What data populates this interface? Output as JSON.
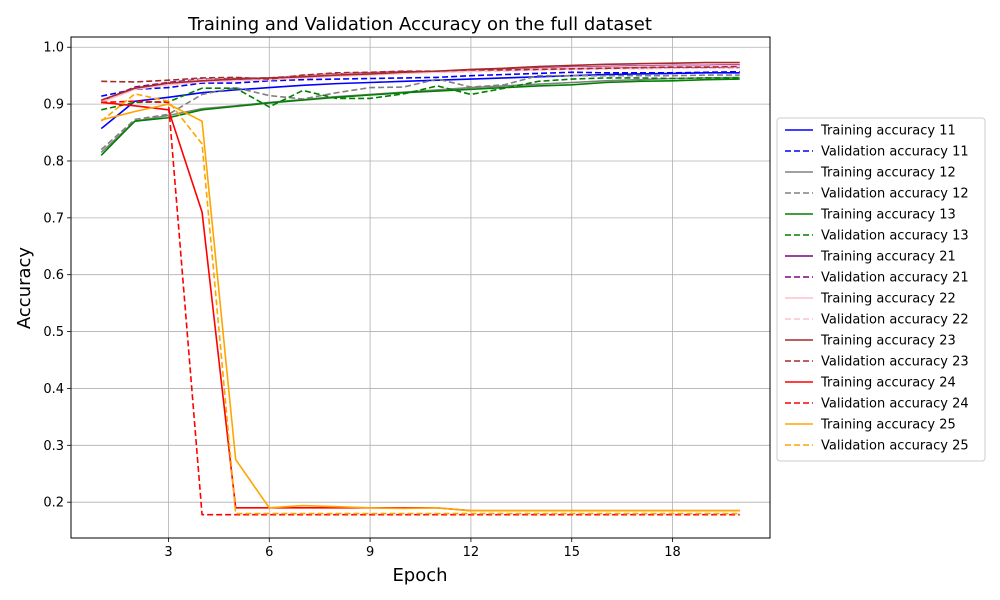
{
  "chart_data": {
    "type": "line",
    "title": "Training and Validation Accuracy on the full dataset",
    "xlabel": "Epoch",
    "ylabel": "Accuracy",
    "xlim": [
      0.1,
      20.9
    ],
    "ylim": [
      0.137,
      1.018
    ],
    "xticks": [
      3,
      6,
      9,
      12,
      15,
      18
    ],
    "yticks": [
      0.2,
      0.3,
      0.4,
      0.5,
      0.6,
      0.7,
      0.8,
      0.9,
      1.0
    ],
    "grid": true,
    "legend_position": "center-right, outside plot",
    "x": [
      1,
      2,
      3,
      4,
      5,
      6,
      7,
      8,
      9,
      10,
      11,
      12,
      13,
      14,
      15,
      16,
      17,
      18,
      19,
      20
    ],
    "series": [
      {
        "name": "Training accuracy 11",
        "color": "#0000ff",
        "style": "solid",
        "values": [
          0.857,
          0.905,
          0.912,
          0.92,
          0.925,
          0.929,
          0.933,
          0.936,
          0.938,
          0.94,
          0.942,
          0.944,
          0.946,
          0.948,
          0.95,
          0.952,
          0.953,
          0.954,
          0.955,
          0.955
        ]
      },
      {
        "name": "Validation accuracy 11",
        "color": "#0000ff",
        "style": "dashed",
        "values": [
          0.914,
          0.926,
          0.929,
          0.937,
          0.937,
          0.941,
          0.943,
          0.944,
          0.945,
          0.946,
          0.947,
          0.95,
          0.952,
          0.954,
          0.956,
          0.955,
          0.955,
          0.955,
          0.956,
          0.957
        ]
      },
      {
        "name": "Training accuracy 12",
        "color": "#808080",
        "style": "solid",
        "values": [
          0.815,
          0.87,
          0.88,
          0.892,
          0.897,
          0.903,
          0.908,
          0.913,
          0.917,
          0.921,
          0.925,
          0.929,
          0.932,
          0.935,
          0.938,
          0.941,
          0.943,
          0.945,
          0.946,
          0.947
        ]
      },
      {
        "name": "Validation accuracy 12",
        "color": "#808080",
        "style": "dashed",
        "values": [
          0.82,
          0.873,
          0.882,
          0.917,
          0.929,
          0.915,
          0.909,
          0.92,
          0.929,
          0.93,
          0.944,
          0.93,
          0.934,
          0.95,
          0.95,
          0.95,
          0.95,
          0.95,
          0.951,
          0.951
        ]
      },
      {
        "name": "Training accuracy 13",
        "color": "#008000",
        "style": "solid",
        "values": [
          0.81,
          0.87,
          0.876,
          0.89,
          0.896,
          0.902,
          0.907,
          0.912,
          0.916,
          0.92,
          0.923,
          0.926,
          0.929,
          0.932,
          0.934,
          0.938,
          0.94,
          0.941,
          0.943,
          0.944
        ]
      },
      {
        "name": "Validation accuracy 13",
        "color": "#008000",
        "style": "dashed",
        "values": [
          0.89,
          0.903,
          0.904,
          0.928,
          0.928,
          0.895,
          0.924,
          0.91,
          0.91,
          0.918,
          0.932,
          0.917,
          0.928,
          0.94,
          0.944,
          0.946,
          0.946,
          0.945,
          0.946,
          0.946
        ]
      },
      {
        "name": "Training accuracy 21",
        "color": "#800080",
        "style": "solid",
        "values": [
          0.905,
          0.928,
          0.936,
          0.94,
          0.942,
          0.944,
          0.947,
          0.95,
          0.952,
          0.955,
          0.957,
          0.959,
          0.961,
          0.963,
          0.965,
          0.966,
          0.967,
          0.968,
          0.968,
          0.969
        ]
      },
      {
        "name": "Validation accuracy 21",
        "color": "#800080",
        "style": "dashed",
        "values": [
          0.905,
          0.93,
          0.938,
          0.944,
          0.945,
          0.946,
          0.95,
          0.953,
          0.955,
          0.957,
          0.957,
          0.958,
          0.96,
          0.962,
          0.963,
          0.963,
          0.963,
          0.964,
          0.964,
          0.964
        ]
      },
      {
        "name": "Training accuracy 22",
        "color": "#ffc0cb",
        "style": "solid",
        "values": [
          0.903,
          0.926,
          0.934,
          0.939,
          0.941,
          0.943,
          0.946,
          0.949,
          0.951,
          0.954,
          0.956,
          0.958,
          0.96,
          0.962,
          0.964,
          0.965,
          0.966,
          0.967,
          0.967,
          0.968
        ]
      },
      {
        "name": "Validation accuracy 22",
        "color": "#ffc0cb",
        "style": "dashed",
        "values": [
          0.906,
          0.928,
          0.936,
          0.943,
          0.944,
          0.945,
          0.95,
          0.952,
          0.954,
          0.956,
          0.956,
          0.957,
          0.958,
          0.96,
          0.961,
          0.962,
          0.962,
          0.963,
          0.963,
          0.963
        ]
      },
      {
        "name": "Training accuracy 23",
        "color": "#a52a2a",
        "style": "solid",
        "values": [
          0.907,
          0.928,
          0.937,
          0.941,
          0.944,
          0.946,
          0.948,
          0.951,
          0.953,
          0.956,
          0.958,
          0.961,
          0.963,
          0.966,
          0.968,
          0.97,
          0.971,
          0.972,
          0.973,
          0.973
        ]
      },
      {
        "name": "Validation accuracy 23",
        "color": "#a52a2a",
        "style": "dashed",
        "values": [
          0.94,
          0.939,
          0.942,
          0.946,
          0.947,
          0.944,
          0.951,
          0.955,
          0.956,
          0.958,
          0.958,
          0.96,
          0.96,
          0.961,
          0.962,
          0.963,
          0.964,
          0.965,
          0.965,
          0.966
        ]
      },
      {
        "name": "Training accuracy 24",
        "color": "#ff0000",
        "style": "solid",
        "values": [
          0.903,
          0.897,
          0.89,
          0.71,
          0.19,
          0.19,
          0.19,
          0.19,
          0.19,
          0.19,
          0.19,
          0.185,
          0.185,
          0.185,
          0.185,
          0.185,
          0.185,
          0.185,
          0.185,
          0.185
        ]
      },
      {
        "name": "Validation accuracy 24",
        "color": "#ff0000",
        "style": "dashed",
        "values": [
          0.903,
          0.905,
          0.903,
          0.178,
          0.178,
          0.178,
          0.178,
          0.178,
          0.178,
          0.178,
          0.178,
          0.178,
          0.178,
          0.178,
          0.178,
          0.178,
          0.178,
          0.178,
          0.178,
          0.178
        ]
      },
      {
        "name": "Training accuracy 25",
        "color": "#ffa500",
        "style": "solid",
        "values": [
          0.872,
          0.887,
          0.9,
          0.87,
          0.275,
          0.19,
          0.194,
          0.192,
          0.19,
          0.189,
          0.19,
          0.185,
          0.185,
          0.185,
          0.185,
          0.185,
          0.185,
          0.185,
          0.185,
          0.185
        ]
      },
      {
        "name": "Validation accuracy 25",
        "color": "#ffa500",
        "style": "dashed",
        "values": [
          0.87,
          0.918,
          0.905,
          0.83,
          0.18,
          0.18,
          0.18,
          0.18,
          0.18,
          0.18,
          0.18,
          0.18,
          0.18,
          0.18,
          0.18,
          0.18,
          0.18,
          0.18,
          0.18,
          0.18
        ]
      }
    ]
  }
}
